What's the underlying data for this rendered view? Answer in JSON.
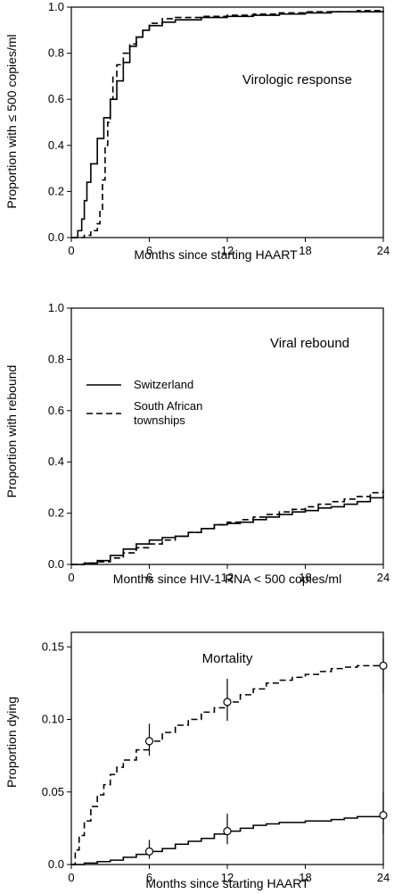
{
  "chart_data": [
    {
      "type": "line",
      "title": "Virologic response",
      "xlabel": "Months since starting HAART",
      "ylabel": "Proportion with ≤ 500 copies/ml",
      "xlim": [
        0,
        24
      ],
      "ylim": [
        0,
        1.0
      ],
      "xticks": [
        "0",
        "6",
        "12",
        "18",
        "24"
      ],
      "yticks": [
        "0.0",
        "0.2",
        "0.4",
        "0.6",
        "0.8",
        "1.0"
      ],
      "series": [
        {
          "style": "solid",
          "x": [
            0,
            0.5,
            0.8,
            1.0,
            1.2,
            1.5,
            2.0,
            2.5,
            3.0,
            3.5,
            4.0,
            4.5,
            5.0,
            5.5,
            6.0,
            7.0,
            8.0,
            10.0,
            12.0,
            14.0,
            16.0,
            18.0,
            20.0,
            22.0,
            24.0
          ],
          "y": [
            0.0,
            0.03,
            0.08,
            0.16,
            0.24,
            0.32,
            0.43,
            0.52,
            0.6,
            0.68,
            0.76,
            0.83,
            0.87,
            0.9,
            0.92,
            0.935,
            0.945,
            0.955,
            0.96,
            0.965,
            0.97,
            0.975,
            0.98,
            0.98,
            0.985
          ]
        },
        {
          "style": "dashed",
          "x": [
            0,
            1.0,
            1.5,
            2.0,
            2.2,
            2.4,
            2.6,
            2.8,
            3.0,
            3.2,
            3.5,
            4.0,
            4.5,
            5.0,
            5.5,
            6.0,
            7.0,
            8.0,
            10.0,
            12.0,
            14.0,
            16.0,
            18.0,
            20.0,
            22.0,
            24.0
          ],
          "y": [
            0.0,
            0.01,
            0.03,
            0.06,
            0.12,
            0.25,
            0.4,
            0.5,
            0.6,
            0.7,
            0.75,
            0.8,
            0.84,
            0.87,
            0.9,
            0.93,
            0.95,
            0.955,
            0.96,
            0.965,
            0.97,
            0.975,
            0.98,
            0.98,
            0.985,
            0.985
          ]
        }
      ]
    },
    {
      "type": "line",
      "title": "Viral rebound",
      "xlabel": "Months since HIV-1 RNA < 500 copies/ml",
      "ylabel": "Proportion with rebound",
      "xlim": [
        0,
        24
      ],
      "ylim": [
        0,
        1.0
      ],
      "xticks": [
        "0",
        "6",
        "12",
        "18",
        "24"
      ],
      "yticks": [
        "0.0",
        "0.2",
        "0.4",
        "0.6",
        "0.8",
        "1.0"
      ],
      "legend": {
        "placement": "left",
        "entries": [
          {
            "style": "solid",
            "lines": [
              "Switzerland"
            ]
          },
          {
            "style": "dashed",
            "lines": [
              "South African",
              "townships"
            ]
          }
        ]
      },
      "series": [
        {
          "style": "solid",
          "x": [
            0,
            1,
            2,
            3,
            4,
            5,
            6,
            7,
            8,
            9,
            10,
            11,
            12,
            13,
            14,
            15,
            16,
            17,
            18,
            19,
            20,
            21,
            22,
            23,
            24
          ],
          "y": [
            0.0,
            0.005,
            0.015,
            0.035,
            0.06,
            0.08,
            0.095,
            0.105,
            0.11,
            0.125,
            0.14,
            0.155,
            0.16,
            0.165,
            0.175,
            0.185,
            0.195,
            0.205,
            0.21,
            0.22,
            0.225,
            0.235,
            0.245,
            0.26,
            0.27
          ]
        },
        {
          "style": "dashed",
          "x": [
            0,
            1,
            2,
            3,
            4,
            5,
            6,
            7,
            8,
            9,
            10,
            11,
            12,
            13,
            14,
            15,
            16,
            17,
            18,
            19,
            20,
            21,
            22,
            23,
            24
          ],
          "y": [
            0.0,
            0.005,
            0.01,
            0.025,
            0.045,
            0.065,
            0.08,
            0.095,
            0.11,
            0.125,
            0.14,
            0.155,
            0.165,
            0.175,
            0.185,
            0.195,
            0.205,
            0.215,
            0.225,
            0.235,
            0.245,
            0.255,
            0.265,
            0.28,
            0.29
          ]
        }
      ]
    },
    {
      "type": "line",
      "title": "Mortality",
      "xlabel": "Months since starting HAART",
      "ylabel": "Proportion dying",
      "xlim": [
        0,
        24
      ],
      "ylim": [
        0,
        0.16
      ],
      "xticks": [
        "0",
        "6",
        "12",
        "18",
        "24"
      ],
      "yticks": [
        "0.0",
        "0.05",
        "0.10",
        "0.15"
      ],
      "series": [
        {
          "style": "solid",
          "x": [
            0,
            1,
            2,
            3,
            4,
            5,
            6,
            7,
            8,
            9,
            10,
            11,
            12,
            13,
            14,
            15,
            16,
            17,
            18,
            19,
            20,
            21,
            22,
            23,
            24
          ],
          "y": [
            0.0,
            0.001,
            0.002,
            0.003,
            0.005,
            0.007,
            0.009,
            0.011,
            0.014,
            0.016,
            0.018,
            0.021,
            0.023,
            0.025,
            0.027,
            0.028,
            0.029,
            0.029,
            0.03,
            0.03,
            0.031,
            0.032,
            0.033,
            0.033,
            0.034
          ]
        },
        {
          "style": "dashed",
          "x": [
            0,
            0.3,
            0.6,
            1,
            1.5,
            2,
            2.5,
            3,
            3.5,
            4,
            5,
            6,
            7,
            8,
            9,
            10,
            11,
            12,
            13,
            14,
            15,
            16,
            17,
            18,
            19,
            20,
            21,
            22,
            23,
            24
          ],
          "y": [
            0.0,
            0.01,
            0.02,
            0.03,
            0.04,
            0.048,
            0.055,
            0.062,
            0.067,
            0.072,
            0.079,
            0.085,
            0.091,
            0.096,
            0.1,
            0.105,
            0.108,
            0.112,
            0.117,
            0.121,
            0.125,
            0.127,
            0.129,
            0.131,
            0.133,
            0.135,
            0.136,
            0.137,
            0.137,
            0.137
          ]
        }
      ],
      "points": [
        {
          "series": "dashed",
          "x": 6,
          "y": 0.085,
          "lo": 0.075,
          "hi": 0.097
        },
        {
          "series": "dashed",
          "x": 12,
          "y": 0.112,
          "lo": 0.099,
          "hi": 0.128
        },
        {
          "series": "dashed",
          "x": 24,
          "y": 0.137,
          "lo": 0.118,
          "hi": 0.156
        },
        {
          "series": "solid",
          "x": 6,
          "y": 0.009,
          "lo": 0.004,
          "hi": 0.017
        },
        {
          "series": "solid",
          "x": 12,
          "y": 0.023,
          "lo": 0.014,
          "hi": 0.035
        },
        {
          "series": "solid",
          "x": 24,
          "y": 0.034,
          "lo": 0.021,
          "hi": 0.05
        }
      ]
    }
  ]
}
